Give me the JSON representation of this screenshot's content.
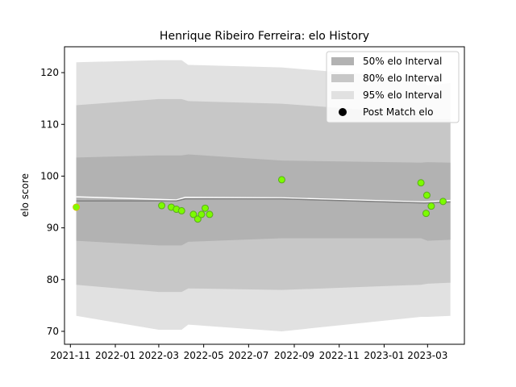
{
  "chart_data": {
    "type": "scatter",
    "title": "Henrique Ribeiro Ferreira: elo History",
    "xlabel": "",
    "ylabel": "elo score",
    "xlim": [
      "2021-10-24",
      "2023-04-20"
    ],
    "ylim": [
      67.5,
      125
    ],
    "x_ticks": [
      "2021-11",
      "2022-01",
      "2022-03",
      "2022-05",
      "2022-07",
      "2022-09",
      "2022-11",
      "2023-01",
      "2023-03"
    ],
    "y_ticks": [
      70,
      80,
      90,
      100,
      110,
      120
    ],
    "grid": false,
    "legend_position": "top-right",
    "legend": [
      {
        "label": "50% elo Interval",
        "kind": "band",
        "color": "#b2b2b2"
      },
      {
        "label": "80% elo Interval",
        "kind": "band",
        "color": "#c7c7c7"
      },
      {
        "label": "95% elo Interval",
        "kind": "band",
        "color": "#e1e1e1"
      },
      {
        "label": "Post Match elo",
        "kind": "marker",
        "color": "#000000"
      }
    ],
    "band_dates": [
      "2021-11-09",
      "2022-03-01",
      "2022-04-01",
      "2022-04-10",
      "2022-08-15",
      "2023-02-20",
      "2023-03-01",
      "2023-04-01"
    ],
    "bands": {
      "p95": {
        "lower": [
          73.0,
          70.3,
          70.3,
          71.3,
          70.0,
          72.8,
          72.8,
          73.0
        ],
        "upper": [
          122.0,
          122.4,
          122.4,
          121.5,
          121.0,
          118.8,
          117.5,
          118.0
        ]
      },
      "p80": {
        "lower": [
          79.0,
          77.6,
          77.6,
          78.3,
          78.0,
          79.0,
          79.2,
          79.4
        ],
        "upper": [
          113.7,
          114.9,
          114.9,
          114.5,
          114.0,
          112.0,
          111.0,
          111.0
        ]
      },
      "p50": {
        "lower": [
          87.5,
          86.6,
          86.6,
          87.3,
          88.0,
          88.0,
          87.5,
          87.7
        ],
        "upper": [
          103.6,
          104.0,
          104.0,
          104.2,
          103.0,
          102.6,
          102.7,
          102.6
        ]
      }
    },
    "mean_line": {
      "color": "#808080",
      "dates": [
        "2021-11-09",
        "2022-03-25",
        "2022-04-06",
        "2022-08-15",
        "2023-02-25",
        "2023-04-01"
      ],
      "values": [
        95.2,
        95.2,
        95.6,
        95.6,
        94.8,
        95.0
      ]
    },
    "white_line": {
      "color": "#ffffff",
      "dates": [
        "2021-11-09",
        "2022-03-25",
        "2022-04-06",
        "2022-08-15",
        "2023-02-25",
        "2023-04-01"
      ],
      "values": [
        96.0,
        95.4,
        95.9,
        95.8,
        95.0,
        95.3
      ]
    },
    "points": [
      {
        "x": "2021-11-09",
        "y": 94.0
      },
      {
        "x": "2022-03-05",
        "y": 94.3
      },
      {
        "x": "2022-03-18",
        "y": 94.0
      },
      {
        "x": "2022-03-25",
        "y": 93.6
      },
      {
        "x": "2022-04-01",
        "y": 93.3
      },
      {
        "x": "2022-04-17",
        "y": 92.6
      },
      {
        "x": "2022-04-23",
        "y": 91.7
      },
      {
        "x": "2022-04-28",
        "y": 92.6
      },
      {
        "x": "2022-05-03",
        "y": 93.8
      },
      {
        "x": "2022-05-09",
        "y": 92.6
      },
      {
        "x": "2022-08-15",
        "y": 99.3
      },
      {
        "x": "2023-02-20",
        "y": 98.7
      },
      {
        "x": "2023-02-27",
        "y": 92.8
      },
      {
        "x": "2023-02-28",
        "y": 96.3
      },
      {
        "x": "2023-03-06",
        "y": 94.2
      },
      {
        "x": "2023-03-22",
        "y": 95.1
      }
    ],
    "point_fill": "#7cfc00",
    "point_edge": "#5aab1d",
    "first_point_edge": "#d4c000"
  }
}
